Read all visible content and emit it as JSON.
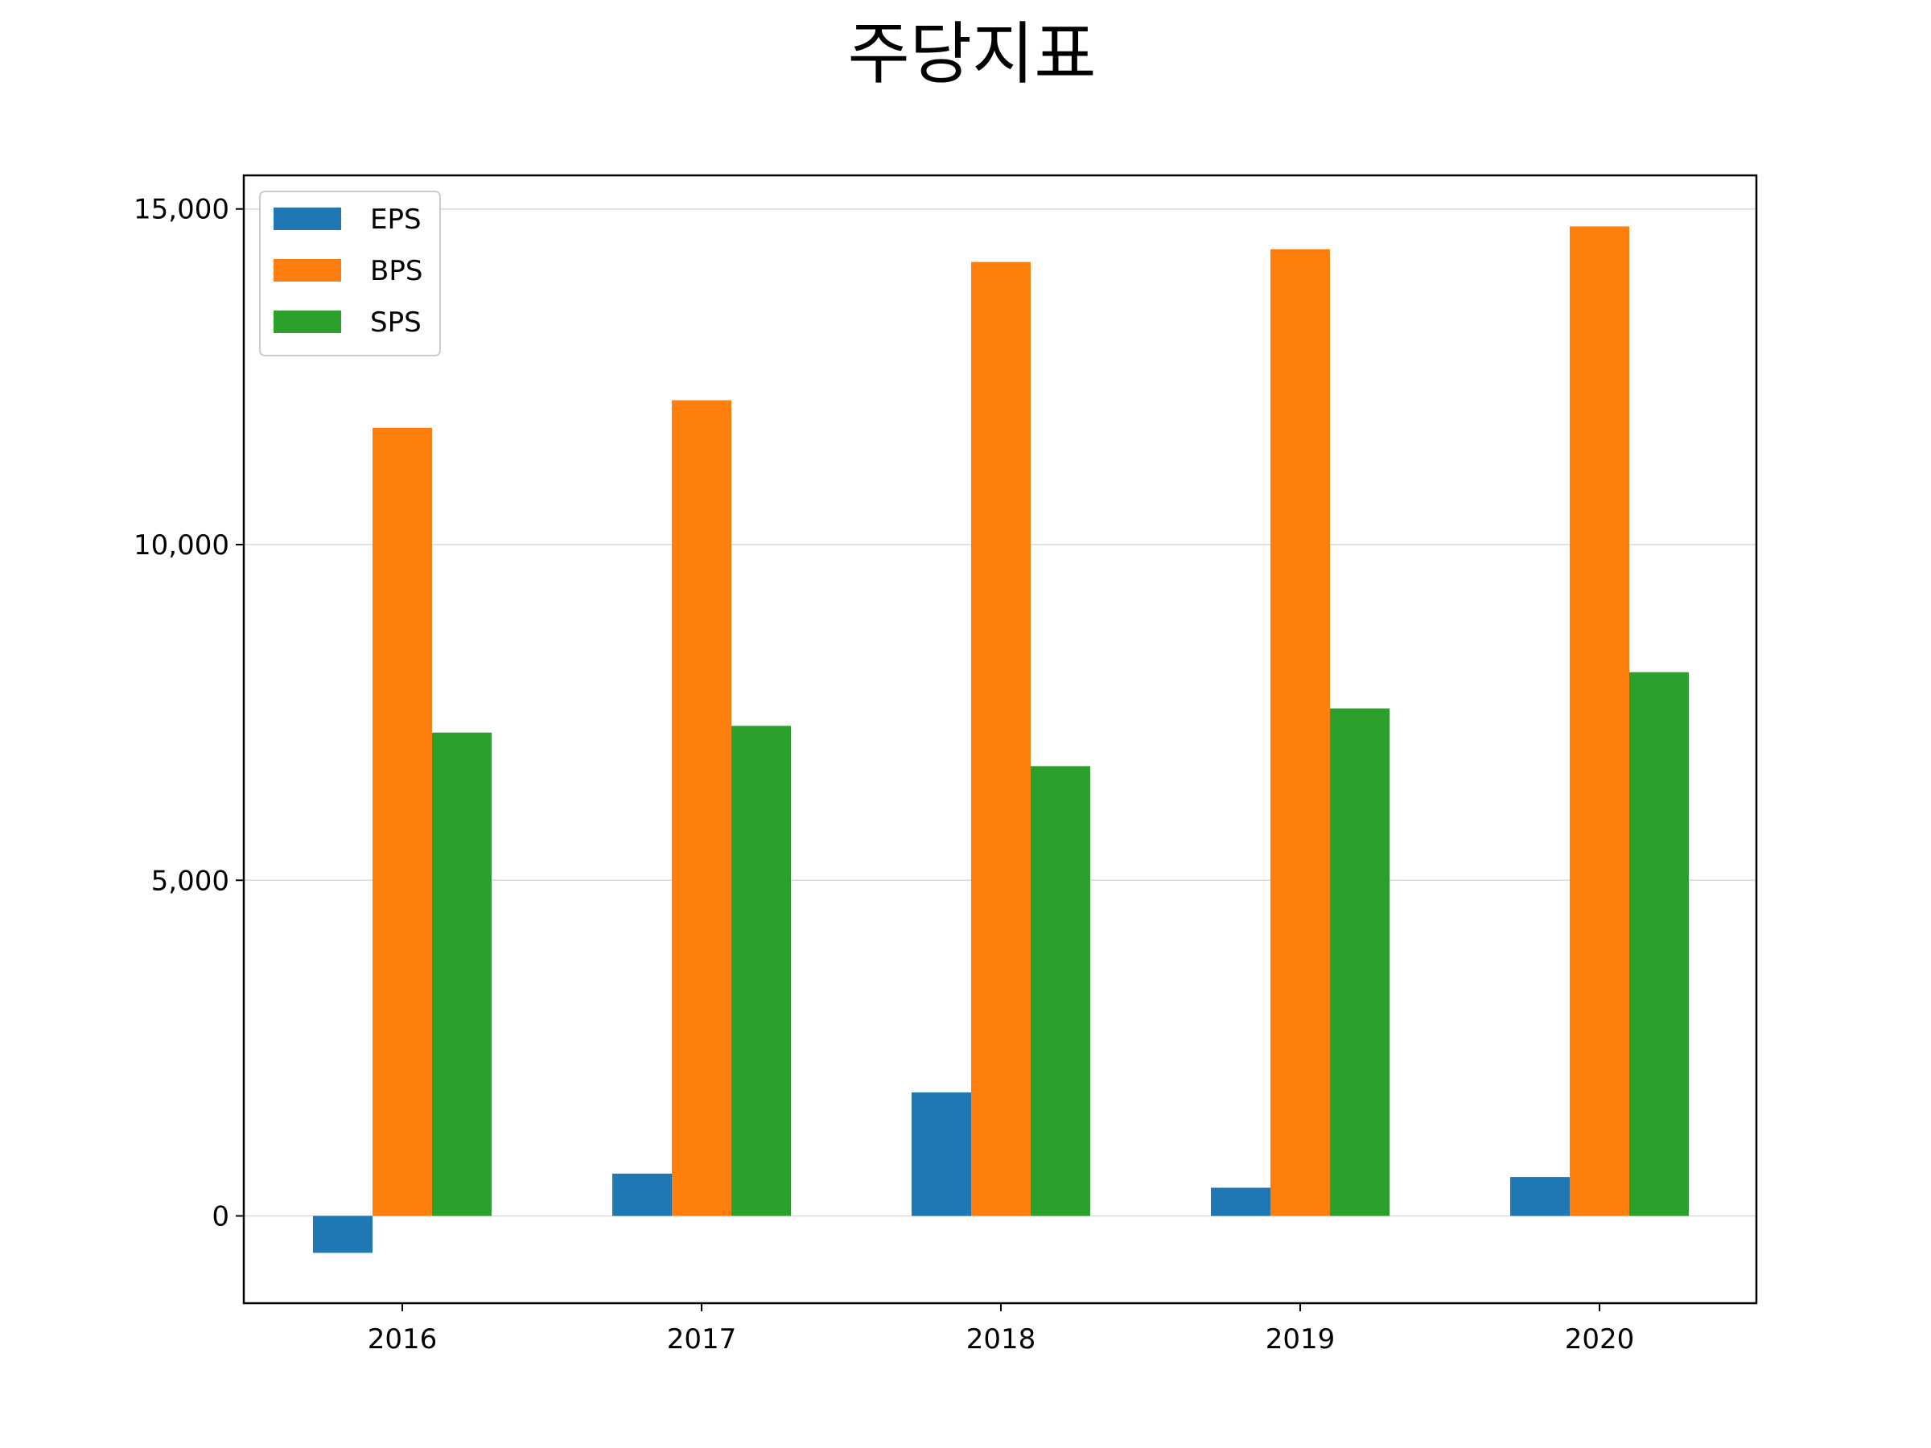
{
  "chart_data": {
    "type": "bar",
    "title": "주당지표",
    "xlabel": "",
    "ylabel": "",
    "categories": [
      "2016",
      "2017",
      "2018",
      "2019",
      "2020"
    ],
    "series": [
      {
        "name": "EPS",
        "color": "#1f77b4",
        "values": [
          -550,
          630,
          1840,
          420,
          580
        ]
      },
      {
        "name": "BPS",
        "color": "#ff7f0e",
        "values": [
          11740,
          12150,
          14210,
          14400,
          14740
        ]
      },
      {
        "name": "SPS",
        "color": "#2ca02c",
        "values": [
          7200,
          7300,
          6700,
          7560,
          8100
        ]
      }
    ],
    "ylim": [
      -1300,
      15500
    ],
    "yticks": [
      0,
      5000,
      10000,
      15000
    ],
    "ytick_labels": [
      "0",
      "5,000",
      "10,000",
      "15,000"
    ],
    "grid": "horizontal",
    "legend": "top-left"
  }
}
